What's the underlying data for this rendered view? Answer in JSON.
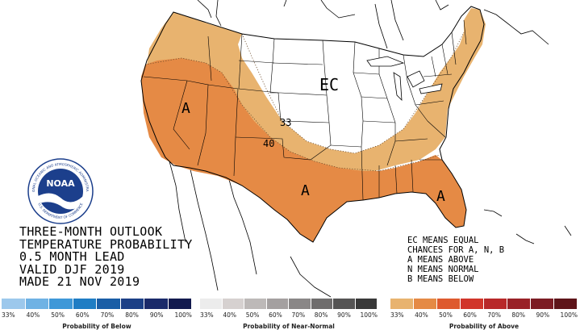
{
  "title_lines": [
    "THREE-MONTH OUTLOOK",
    "TEMPERATURE PROBABILITY",
    "0.5 MONTH LEAD",
    "VALID DJF 2019",
    "MADE 21 NOV 2019"
  ],
  "map_labels": {
    "ec": "EC",
    "a_west": "A",
    "a_south": "A",
    "a_florida": "A",
    "contour_33": "33",
    "contour_40": "40"
  },
  "legend_lines": [
    "EC MEANS EQUAL",
    "CHANCES FOR A, N, B",
    "A MEANS ABOVE",
    "N MEANS NORMAL",
    "B MEANS BELOW"
  ],
  "logo_text": {
    "center": "NOAA",
    "ring_top": "NATIONAL OCEANIC AND ATMOSPHERIC ADMINISTRATION",
    "ring_bottom": "U.S. DEPARTMENT OF COMMERCE"
  },
  "scales": {
    "below": {
      "caption": "Probability of Below",
      "ticks": [
        "33%",
        "40%",
        "50%",
        "60%",
        "70%",
        "80%",
        "90%",
        "100%"
      ],
      "colors": [
        "#9cc8ec",
        "#6fb2e4",
        "#3e98d8",
        "#1f7dc4",
        "#1a5ea6",
        "#1b3f86",
        "#1a2a6a",
        "#121a4e"
      ]
    },
    "normal": {
      "caption": "Probability of Near-Normal",
      "ticks": [
        "33%",
        "40%",
        "50%",
        "60%",
        "70%",
        "80%",
        "90%",
        "100%"
      ],
      "colors": [
        "#ececec",
        "#d6d1d0",
        "#bdb9b8",
        "#a4a0a0",
        "#8a8787",
        "#6f6d6d",
        "#555454",
        "#393939"
      ]
    },
    "above": {
      "caption": "Probability of Above",
      "ticks": [
        "33%",
        "40%",
        "50%",
        "60%",
        "70%",
        "80%",
        "90%",
        "100%"
      ],
      "colors": [
        "#e8b36f",
        "#e58a45",
        "#de5a2e",
        "#d1352a",
        "#b82829",
        "#992127",
        "#7c1c24",
        "#5e1419"
      ]
    }
  },
  "colors": {
    "above_33_40": "#e8b36f",
    "above_40_50": "#e58a45",
    "ec_background": "#ffffff",
    "borders": "#000000"
  }
}
